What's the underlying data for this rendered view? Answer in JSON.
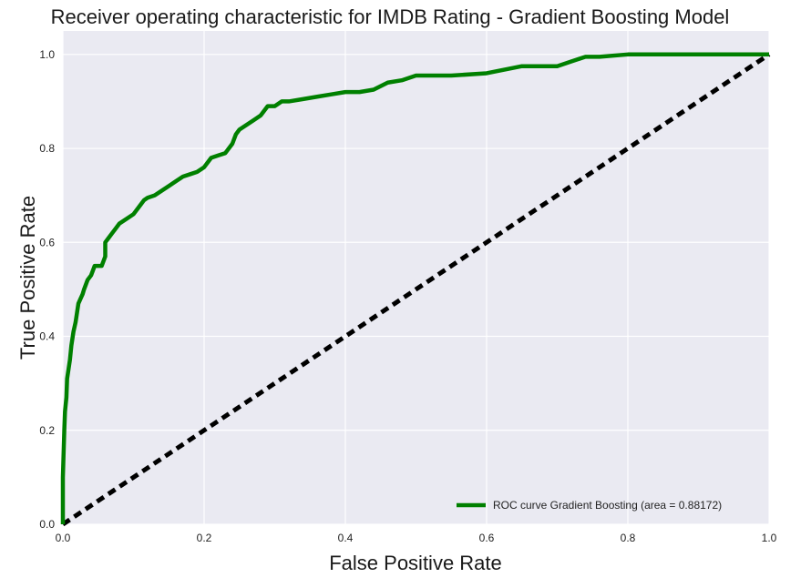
{
  "chart_data": {
    "type": "line",
    "title": "Receiver operating characteristic for IMDB Rating - Gradient Boosting Model",
    "xlabel": "False Positive Rate",
    "ylabel": "True Positive Rate",
    "xlim": [
      0.0,
      1.0
    ],
    "ylim": [
      0.0,
      1.05
    ],
    "x_ticks": [
      "0.0",
      "0.2",
      "0.4",
      "0.6",
      "0.8",
      "1.0"
    ],
    "y_ticks": [
      "0.0",
      "0.2",
      "0.4",
      "0.6",
      "0.8",
      "1.0"
    ],
    "grid": true,
    "legend_position": "lower-right",
    "background_color": "#eaeaf2",
    "grid_color": "#ffffff",
    "series": [
      {
        "name": "ROC curve Gradient Boosting (area = 0.88172)",
        "color": "#008000",
        "style": "solid",
        "x": [
          0.0,
          0.0,
          0.002,
          0.003,
          0.005,
          0.006,
          0.008,
          0.01,
          0.012,
          0.015,
          0.018,
          0.02,
          0.022,
          0.025,
          0.028,
          0.03,
          0.035,
          0.04,
          0.045,
          0.05,
          0.055,
          0.06,
          0.06,
          0.065,
          0.07,
          0.075,
          0.08,
          0.09,
          0.1,
          0.11,
          0.115,
          0.12,
          0.13,
          0.14,
          0.15,
          0.16,
          0.17,
          0.18,
          0.19,
          0.2,
          0.21,
          0.22,
          0.23,
          0.24,
          0.245,
          0.25,
          0.26,
          0.27,
          0.28,
          0.29,
          0.3,
          0.31,
          0.32,
          0.34,
          0.36,
          0.38,
          0.4,
          0.42,
          0.44,
          0.46,
          0.48,
          0.5,
          0.55,
          0.6,
          0.65,
          0.7,
          0.72,
          0.74,
          0.76,
          0.8,
          0.85,
          0.9,
          0.95,
          1.0
        ],
        "y": [
          0.0,
          0.1,
          0.2,
          0.24,
          0.27,
          0.31,
          0.33,
          0.35,
          0.38,
          0.41,
          0.43,
          0.45,
          0.47,
          0.48,
          0.49,
          0.5,
          0.52,
          0.53,
          0.55,
          0.55,
          0.55,
          0.57,
          0.6,
          0.61,
          0.62,
          0.63,
          0.64,
          0.65,
          0.66,
          0.68,
          0.69,
          0.695,
          0.7,
          0.71,
          0.72,
          0.73,
          0.74,
          0.745,
          0.75,
          0.76,
          0.78,
          0.785,
          0.79,
          0.81,
          0.83,
          0.84,
          0.85,
          0.86,
          0.87,
          0.89,
          0.89,
          0.9,
          0.9,
          0.905,
          0.91,
          0.915,
          0.92,
          0.92,
          0.925,
          0.94,
          0.945,
          0.955,
          0.955,
          0.96,
          0.975,
          0.975,
          0.985,
          0.995,
          0.995,
          1.0,
          1.0,
          1.0,
          1.0,
          1.0
        ]
      },
      {
        "name": "",
        "color": "#000000",
        "style": "dashed",
        "x": [
          0.0,
          1.0
        ],
        "y": [
          0.0,
          1.0
        ]
      }
    ]
  }
}
